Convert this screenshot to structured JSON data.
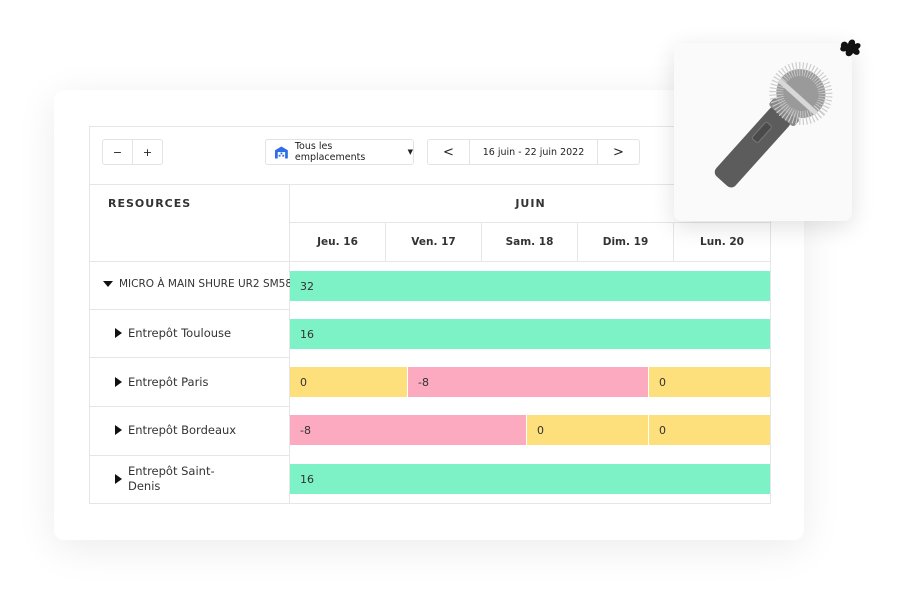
{
  "toolbar": {
    "zoom_out": "−",
    "zoom_in": "+",
    "location": "Tous les emplacements",
    "prev": "<",
    "date_range": "16 juin - 22 juin 2022",
    "next": ">"
  },
  "header": {
    "resources": "RESOURCES",
    "month": "JUIN",
    "days": [
      "Jeu. 16",
      "Ven. 17",
      "Sam. 18",
      "Dim. 19",
      "Lun. 20"
    ]
  },
  "colors": {
    "available": "#7df2c6",
    "zero": "#fddf7c",
    "negative": "#fbaac0",
    "accent": "#2f6fe6"
  },
  "rows": [
    {
      "label": "MICRO À MAIN SHURE UR2 SM58",
      "expanded": true,
      "segments": [
        {
          "value": "32",
          "status": "available"
        }
      ]
    },
    {
      "label": "Entrepôt Toulouse",
      "segments": [
        {
          "value": "16",
          "status": "available"
        }
      ]
    },
    {
      "label": "Entrepôt Paris",
      "segments": [
        {
          "value": "0",
          "status": "zero"
        },
        {
          "value": "-8",
          "status": "negative"
        },
        {
          "value": "0",
          "status": "zero"
        }
      ]
    },
    {
      "label": "Entrepôt Bordeaux",
      "segments": [
        {
          "value": "-8",
          "status": "negative"
        },
        {
          "value": "0",
          "status": "zero"
        },
        {
          "value": "0",
          "status": "zero"
        }
      ]
    },
    {
      "label": "Entrepôt Saint-Denis",
      "segments": [
        {
          "value": "16",
          "status": "available"
        }
      ]
    }
  ]
}
